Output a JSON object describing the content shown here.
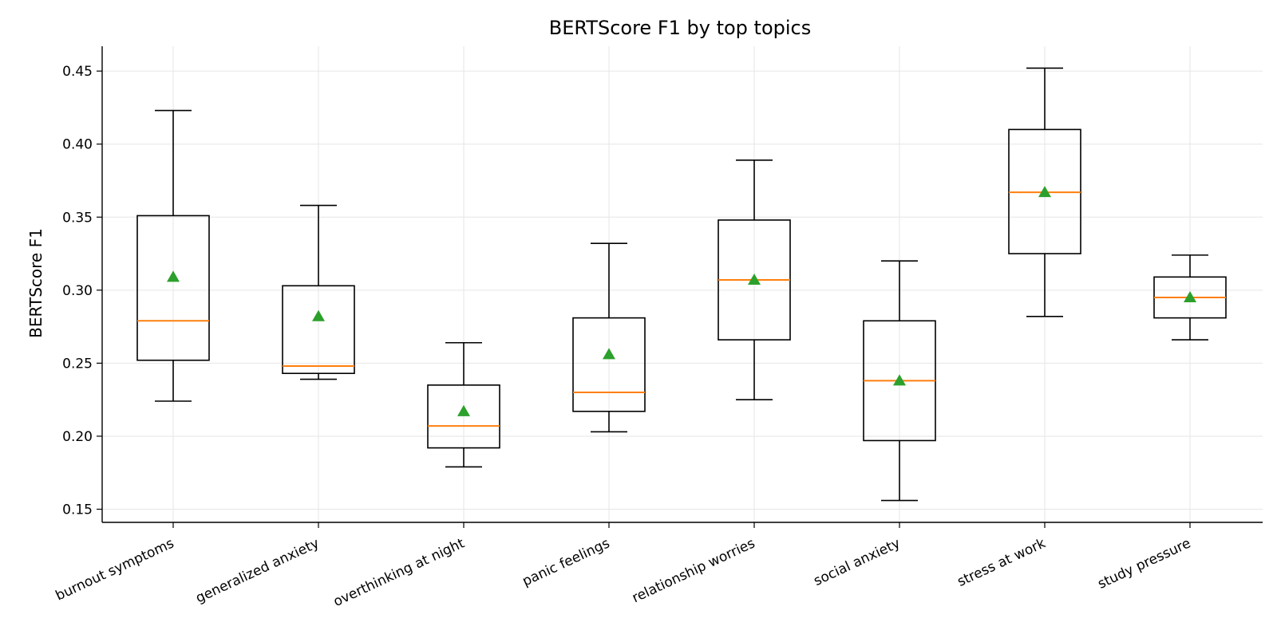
{
  "chart_data": {
    "type": "box",
    "title": "BERTScore F1 by top topics",
    "xlabel": "",
    "ylabel": "BERTScore F1",
    "ylim": [
      0.141,
      0.467
    ],
    "yticks": [
      0.15,
      0.2,
      0.25,
      0.3,
      0.35,
      0.4,
      0.45
    ],
    "ytick_labels": [
      "0.15",
      "0.20",
      "0.25",
      "0.30",
      "0.35",
      "0.40",
      "0.45"
    ],
    "grid": true,
    "colors": {
      "box": "#000000",
      "median": "#ff7f0e",
      "mean": "#2ca02c",
      "grid": "#e6e6e6"
    },
    "categories": [
      "burnout symptoms",
      "generalized anxiety",
      "overthinking at night",
      "panic feelings",
      "relationship worries",
      "social anxiety",
      "stress at work",
      "study pressure"
    ],
    "boxes": [
      {
        "whislo": 0.224,
        "q1": 0.252,
        "med": 0.279,
        "q3": 0.351,
        "whishi": 0.423,
        "mean": 0.309
      },
      {
        "whislo": 0.239,
        "q1": 0.243,
        "med": 0.248,
        "q3": 0.303,
        "whishi": 0.358,
        "mean": 0.282
      },
      {
        "whislo": 0.179,
        "q1": 0.192,
        "med": 0.207,
        "q3": 0.235,
        "whishi": 0.264,
        "mean": 0.217
      },
      {
        "whislo": 0.203,
        "q1": 0.217,
        "med": 0.23,
        "q3": 0.281,
        "whishi": 0.332,
        "mean": 0.256
      },
      {
        "whislo": 0.225,
        "q1": 0.266,
        "med": 0.307,
        "q3": 0.348,
        "whishi": 0.389,
        "mean": 0.307
      },
      {
        "whislo": 0.156,
        "q1": 0.197,
        "med": 0.238,
        "q3": 0.279,
        "whishi": 0.32,
        "mean": 0.238
      },
      {
        "whislo": 0.282,
        "q1": 0.325,
        "med": 0.367,
        "q3": 0.41,
        "whishi": 0.452,
        "mean": 0.367
      },
      {
        "whislo": 0.266,
        "q1": 0.281,
        "med": 0.295,
        "q3": 0.309,
        "whishi": 0.324,
        "mean": 0.295
      }
    ]
  }
}
